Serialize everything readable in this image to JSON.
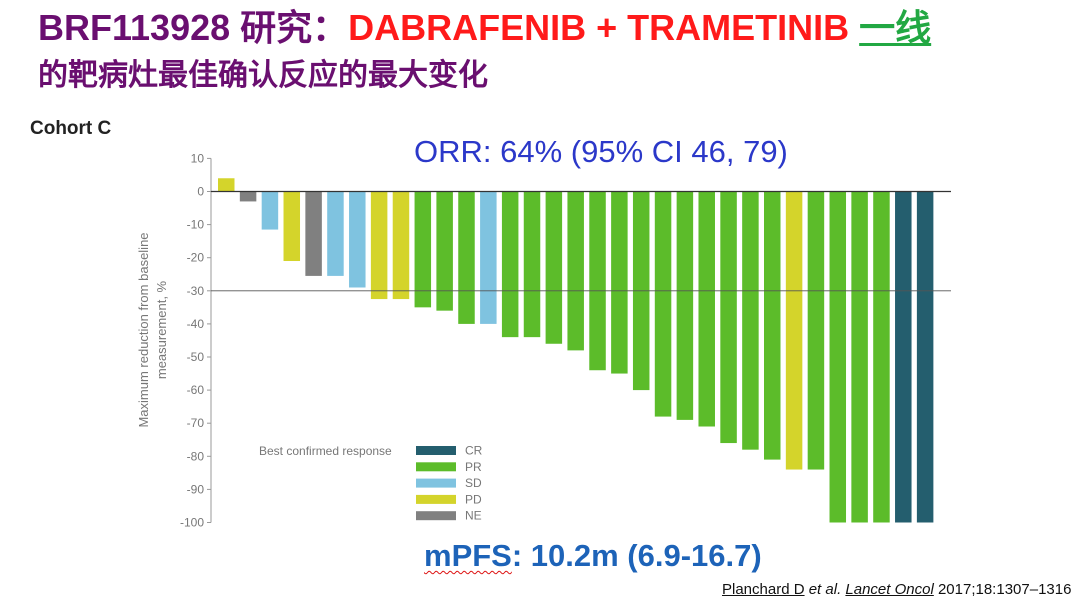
{
  "title": {
    "part1": "BRF113928 研究：",
    "part2": "DABRAFENIB + TRAMETINIB",
    "part3": "一线"
  },
  "subtitle": "的靶病灶最佳确认反应的最大变化",
  "cohort_label": "Cohort C",
  "orr_text": "ORR: 64% (95% CI 46, 79)",
  "mpfs": {
    "label": "mPFS",
    "value": ": 10.2m (6.9-16.7)"
  },
  "citation": {
    "author": "Planchard D",
    "etal": " et al. ",
    "journal": "Lancet Oncol",
    "rest": " 2017;18:1307–1316"
  },
  "colors": {
    "CR": "#245e6e",
    "PR": "#5cbc2a",
    "SD": "#7fc3e0",
    "PD": "#d4d42b",
    "NE": "#808080"
  },
  "chart_data": {
    "type": "bar",
    "ylabel_lines": [
      "Maximum reduction from baseline",
      "measurement, %"
    ],
    "ylim": [
      -100,
      10
    ],
    "yticks": [
      10,
      0,
      -10,
      -20,
      -30,
      -40,
      -50,
      -60,
      -70,
      -80,
      -90,
      -100
    ],
    "reference_line": -30,
    "legend": {
      "title": "Best confirmed response",
      "entries": [
        "CR",
        "PR",
        "SD",
        "PD",
        "NE"
      ]
    },
    "bars": [
      {
        "value": 4,
        "response": "PD"
      },
      {
        "value": -3,
        "response": "NE"
      },
      {
        "value": -11.5,
        "response": "SD"
      },
      {
        "value": -21,
        "response": "PD"
      },
      {
        "value": -25.5,
        "response": "NE"
      },
      {
        "value": -25.5,
        "response": "SD"
      },
      {
        "value": -29,
        "response": "SD"
      },
      {
        "value": -32.5,
        "response": "PD"
      },
      {
        "value": -32.5,
        "response": "PD"
      },
      {
        "value": -35,
        "response": "PR"
      },
      {
        "value": -36,
        "response": "PR"
      },
      {
        "value": -40,
        "response": "PR"
      },
      {
        "value": -40,
        "response": "SD"
      },
      {
        "value": -44,
        "response": "PR"
      },
      {
        "value": -44,
        "response": "PR"
      },
      {
        "value": -46,
        "response": "PR"
      },
      {
        "value": -48,
        "response": "PR"
      },
      {
        "value": -54,
        "response": "PR"
      },
      {
        "value": -55,
        "response": "PR"
      },
      {
        "value": -60,
        "response": "PR"
      },
      {
        "value": -68,
        "response": "PR"
      },
      {
        "value": -69,
        "response": "PR"
      },
      {
        "value": -71,
        "response": "PR"
      },
      {
        "value": -76,
        "response": "PR"
      },
      {
        "value": -78,
        "response": "PR"
      },
      {
        "value": -81,
        "response": "PR"
      },
      {
        "value": -84,
        "response": "PD"
      },
      {
        "value": -84,
        "response": "PR"
      },
      {
        "value": -100,
        "response": "PR"
      },
      {
        "value": -100,
        "response": "PR"
      },
      {
        "value": -100,
        "response": "PR"
      },
      {
        "value": -100,
        "response": "CR"
      },
      {
        "value": -100,
        "response": "CR"
      }
    ]
  }
}
